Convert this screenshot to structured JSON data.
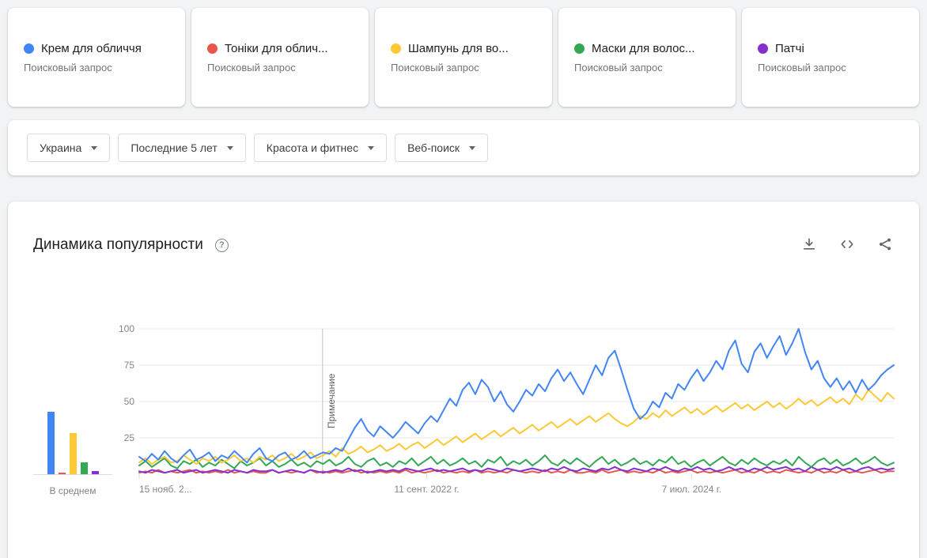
{
  "terms": [
    {
      "label": "Крем для обличчя",
      "type": "Поисковый запрос"
    },
    {
      "label": "Тоніки для облич...",
      "type": "Поисковый запрос"
    },
    {
      "label": "Шампунь для во...",
      "type": "Поисковый запрос"
    },
    {
      "label": "Маски для волос...",
      "type": "Поисковый запрос"
    },
    {
      "label": "Патчі",
      "type": "Поисковый запрос"
    }
  ],
  "filters": [
    {
      "label": "Украина"
    },
    {
      "label": "Последние 5 лет"
    },
    {
      "label": "Красота и фитнес"
    },
    {
      "label": "Веб-поиск"
    }
  ],
  "chart_header": {
    "title": "Динамика популярности",
    "help_icon_glyph": "?"
  },
  "avg_chart": {
    "label": "В среднем"
  },
  "chart_data": {
    "type": "line",
    "title": "Динамика популярности",
    "ylim": [
      0,
      100
    ],
    "y_ticks": [
      100,
      75,
      50,
      25
    ],
    "x_ticks": [
      {
        "label": "15 нояб. 2...",
        "pos": 0
      },
      {
        "label": "11 сент. 2022 г.",
        "pos": 0.381
      },
      {
        "label": "7 июл. 2024 г.",
        "pos": 0.732
      }
    ],
    "annotation": {
      "label": "Примечание",
      "pos": 0.243
    },
    "grid": true,
    "legend_position": "none",
    "draw_order": [
      1,
      4,
      3,
      2,
      0
    ],
    "series": [
      {
        "name": "Крем для обличчя",
        "color": "#4285f4",
        "average": 43,
        "values": [
          12,
          9,
          14,
          10,
          16,
          11,
          8,
          13,
          17,
          10,
          12,
          15,
          9,
          13,
          11,
          16,
          12,
          8,
          14,
          18,
          11,
          9,
          13,
          15,
          10,
          12,
          16,
          11,
          13,
          15,
          14,
          18,
          16,
          24,
          32,
          38,
          30,
          26,
          33,
          29,
          25,
          30,
          36,
          32,
          28,
          35,
          40,
          36,
          44,
          52,
          47,
          58,
          63,
          55,
          65,
          60,
          50,
          57,
          48,
          43,
          50,
          58,
          54,
          62,
          57,
          66,
          72,
          64,
          70,
          62,
          55,
          65,
          75,
          68,
          80,
          85,
          72,
          58,
          45,
          38,
          42,
          50,
          46,
          56,
          52,
          62,
          58,
          66,
          72,
          64,
          70,
          78,
          72,
          85,
          92,
          76,
          70,
          84,
          90,
          80,
          88,
          95,
          82,
          90,
          100,
          84,
          72,
          78,
          66,
          60,
          66,
          58,
          64,
          56,
          65,
          58,
          62,
          68,
          72,
          75
        ]
      },
      {
        "name": "Тоніки для облич...",
        "color": "#e8574e",
        "average": 1,
        "values": [
          1,
          2,
          1,
          3,
          1,
          2,
          1,
          2,
          3,
          1,
          2,
          1,
          2,
          1,
          3,
          1,
          2,
          1,
          2,
          1,
          1,
          3,
          1,
          2,
          1,
          2,
          1,
          3,
          1,
          2,
          1,
          2,
          1,
          2,
          3,
          1,
          2,
          1,
          2,
          1,
          2,
          1,
          3,
          1,
          2,
          1,
          2,
          3,
          1,
          2,
          1,
          2,
          1,
          3,
          1,
          2,
          1,
          2,
          1,
          3,
          2,
          1,
          2,
          1,
          3,
          1,
          2,
          1,
          3,
          1,
          1,
          2,
          1,
          3,
          1,
          2,
          3,
          1,
          2,
          1,
          2,
          1,
          3,
          1,
          2,
          1,
          2,
          3,
          1,
          2,
          1,
          2,
          1,
          2,
          3,
          1,
          2,
          1,
          3,
          1,
          2,
          1,
          3,
          2,
          1,
          2,
          1,
          3,
          1,
          2,
          1,
          3,
          1,
          2,
          1,
          2,
          3,
          1,
          2,
          2
        ]
      },
      {
        "name": "Шампунь для во...",
        "color": "#fcc934",
        "average": 28,
        "values": [
          8,
          11,
          7,
          10,
          12,
          8,
          9,
          13,
          10,
          7,
          11,
          9,
          12,
          8,
          10,
          13,
          9,
          11,
          8,
          12,
          10,
          13,
          9,
          11,
          14,
          10,
          12,
          15,
          11,
          13,
          16,
          12,
          18,
          14,
          16,
          19,
          15,
          17,
          20,
          16,
          18,
          21,
          17,
          20,
          22,
          18,
          21,
          24,
          20,
          23,
          26,
          22,
          25,
          28,
          24,
          27,
          30,
          26,
          29,
          32,
          28,
          31,
          34,
          30,
          33,
          36,
          32,
          35,
          38,
          34,
          37,
          40,
          36,
          39,
          42,
          38,
          35,
          33,
          36,
          40,
          38,
          42,
          39,
          44,
          40,
          43,
          46,
          42,
          45,
          41,
          44,
          47,
          43,
          46,
          49,
          45,
          48,
          44,
          47,
          50,
          46,
          49,
          45,
          48,
          52,
          48,
          51,
          47,
          50,
          53,
          49,
          52,
          48,
          55,
          51,
          58,
          54,
          50,
          56,
          52
        ]
      },
      {
        "name": "Маски для волос...",
        "color": "#34a853",
        "average": 8,
        "values": [
          6,
          9,
          5,
          8,
          11,
          6,
          4,
          9,
          7,
          10,
          5,
          8,
          6,
          10,
          7,
          4,
          9,
          6,
          8,
          11,
          6,
          9,
          5,
          7,
          10,
          6,
          8,
          5,
          9,
          7,
          10,
          6,
          8,
          12,
          7,
          5,
          9,
          11,
          6,
          8,
          5,
          9,
          7,
          11,
          6,
          9,
          12,
          7,
          10,
          6,
          8,
          11,
          7,
          9,
          5,
          10,
          8,
          12,
          6,
          9,
          7,
          10,
          6,
          9,
          13,
          8,
          6,
          10,
          7,
          11,
          8,
          5,
          9,
          12,
          7,
          10,
          6,
          8,
          11,
          7,
          9,
          6,
          10,
          8,
          12,
          7,
          9,
          5,
          8,
          10,
          6,
          9,
          12,
          8,
          6,
          10,
          7,
          11,
          8,
          6,
          9,
          7,
          10,
          6,
          12,
          8,
          5,
          9,
          11,
          7,
          10,
          6,
          8,
          11,
          7,
          9,
          12,
          8,
          6,
          8
        ]
      },
      {
        "name": "Патчі",
        "color": "#8430ce",
        "average": 2,
        "values": [
          2,
          1,
          3,
          2,
          1,
          2,
          3,
          1,
          2,
          3,
          1,
          2,
          3,
          2,
          1,
          3,
          2,
          1,
          3,
          2,
          2,
          3,
          1,
          2,
          3,
          2,
          1,
          3,
          2,
          1,
          2,
          3,
          2,
          4,
          2,
          3,
          1,
          2,
          3,
          2,
          3,
          2,
          4,
          3,
          2,
          3,
          4,
          2,
          3,
          2,
          3,
          4,
          2,
          3,
          2,
          4,
          3,
          2,
          4,
          3,
          2,
          3,
          4,
          3,
          2,
          4,
          3,
          5,
          3,
          2,
          4,
          3,
          2,
          4,
          3,
          5,
          3,
          2,
          4,
          3,
          2,
          4,
          3,
          5,
          3,
          2,
          4,
          3,
          5,
          3,
          4,
          2,
          3,
          5,
          3,
          4,
          2,
          4,
          3,
          5,
          3,
          4,
          5,
          3,
          4,
          2,
          5,
          3,
          4,
          3,
          5,
          3,
          4,
          2,
          4,
          5,
          3,
          4,
          3,
          4
        ]
      }
    ]
  }
}
